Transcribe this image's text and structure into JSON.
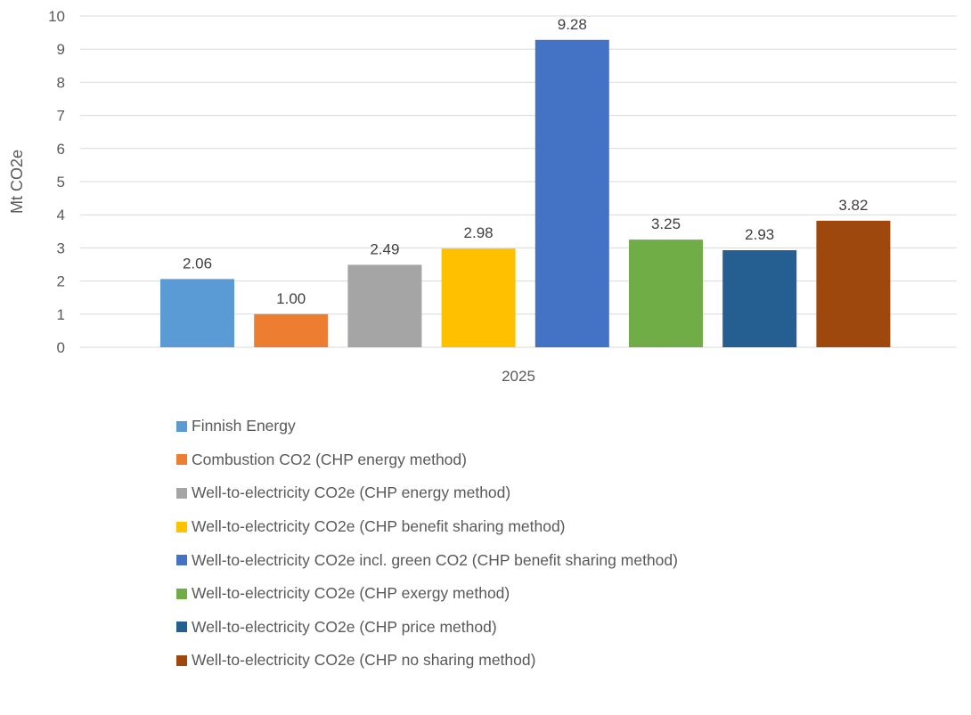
{
  "chart_data": {
    "type": "bar",
    "categories": [
      "2025"
    ],
    "xlabel": "",
    "ylabel": "Mt CO2e",
    "ylim": [
      0,
      10
    ],
    "yticks": [
      0,
      1,
      2,
      3,
      4,
      5,
      6,
      7,
      8,
      9,
      10
    ],
    "grid": true,
    "legend_position": "bottom",
    "series": [
      {
        "name": "Finnish Energy",
        "values": [
          2.06
        ],
        "label": "2.06",
        "color": "#5B9BD5"
      },
      {
        "name": "Combustion CO2 (CHP energy method)",
        "values": [
          1.0
        ],
        "label": "1.00",
        "color": "#ED7D31"
      },
      {
        "name": "Well-to-electricity CO2e (CHP energy method)",
        "values": [
          2.49
        ],
        "label": "2.49",
        "color": "#A5A5A5"
      },
      {
        "name": "Well-to-electricity CO2e (CHP benefit sharing method)",
        "values": [
          2.98
        ],
        "label": "2.98",
        "color": "#FFC000"
      },
      {
        "name": "Well-to-electricity CO2e incl. green CO2 (CHP benefit sharing method)",
        "values": [
          9.28
        ],
        "label": "9.28",
        "color": "#4472C4"
      },
      {
        "name": "Well-to-electricity CO2e (CHP exergy method)",
        "values": [
          3.25
        ],
        "label": "3.25",
        "color": "#70AD47"
      },
      {
        "name": "Well-to-electricity CO2e (CHP price method)",
        "values": [
          2.93
        ],
        "label": "2.93",
        "color": "#255E91"
      },
      {
        "name": "Well-to-electricity CO2e (CHP no sharing method)",
        "values": [
          3.82
        ],
        "label": "3.82",
        "color": "#9E480E"
      }
    ]
  }
}
